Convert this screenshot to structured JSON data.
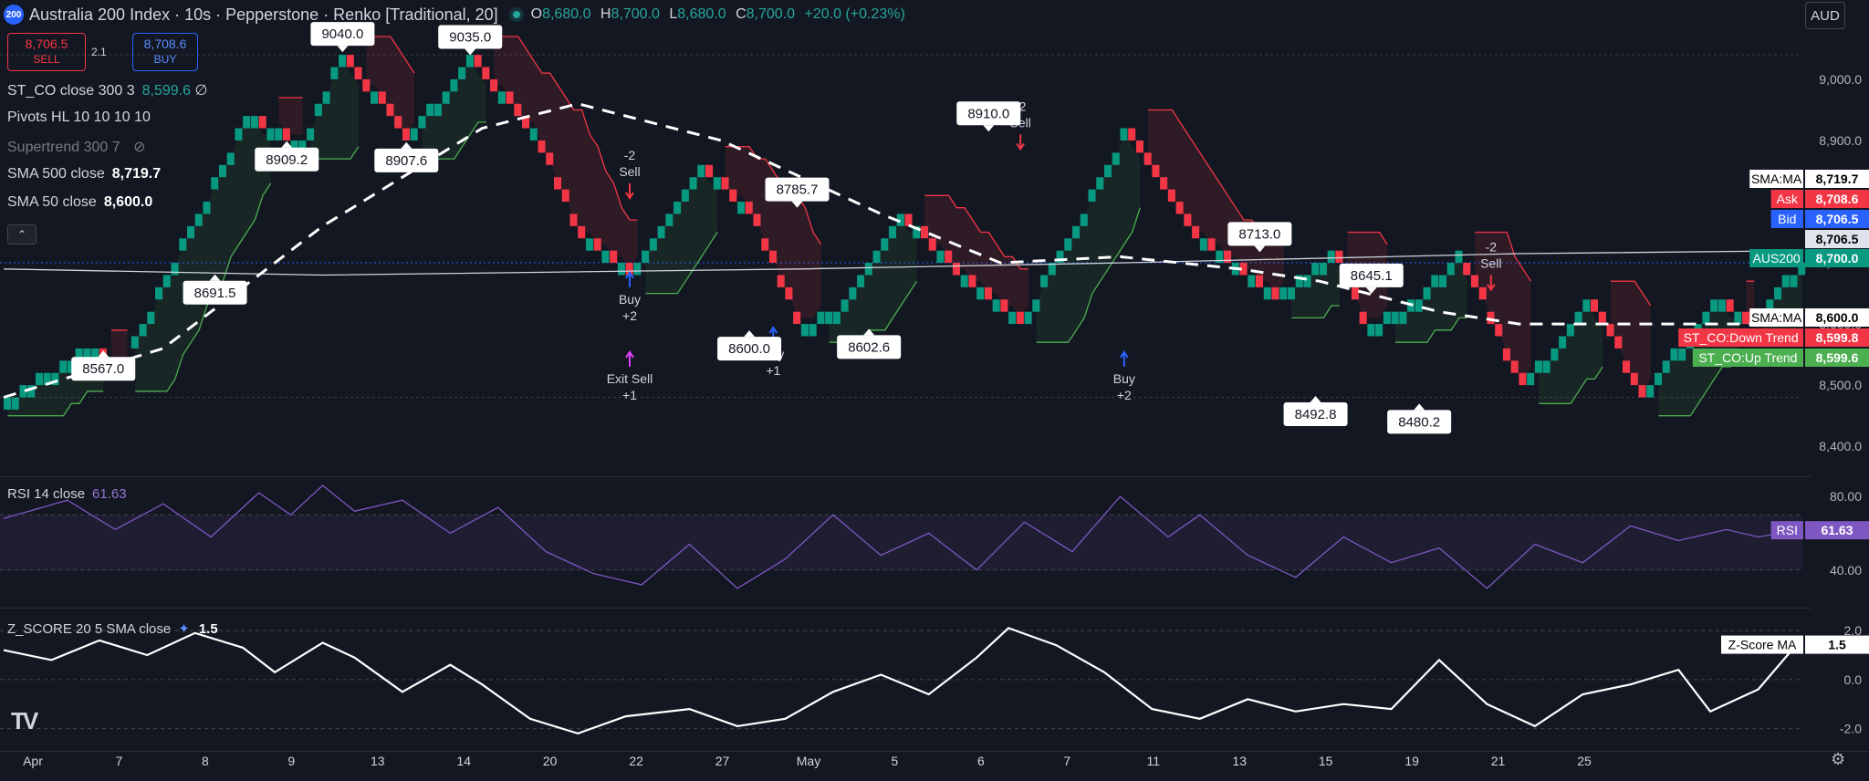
{
  "header": {
    "symbol_badge": "200",
    "title": "Australia 200 Index · 10s · Pepperstone · Renko [Traditional, 20]",
    "ohlc": {
      "o_label": "O",
      "o": "8,680.0",
      "h_label": "H",
      "h": "8,700.0",
      "l_label": "L",
      "l": "8,680.0",
      "c_label": "C",
      "c": "8,700.0",
      "change": "+20.0 (+0.23%)"
    },
    "currency": "AUD"
  },
  "trade": {
    "sell_price": "8,706.5",
    "sell_label": "SELL",
    "spread": "2.1",
    "buy_price": "8,708.6",
    "buy_label": "BUY"
  },
  "legend": {
    "st_co": "ST_CO close 300 3",
    "st_co_value": "8,599.6",
    "st_co_extra": "∅",
    "pivots": "Pivots HL 10 10 10 10",
    "supertrend": "Supertrend 300 7",
    "sma500": "SMA 500 close",
    "sma500_value": "8,719.7",
    "sma50": "SMA 50 close",
    "sma50_value": "8,600.0",
    "rsi": "RSI 14 close",
    "rsi_value": "61.63",
    "zscore": "Z_SCORE 20 5 SMA close",
    "zscore_value": "1.5"
  },
  "price_labels": [
    {
      "text": "SMA:MA",
      "value": "8,719.7",
      "bg": "#ffffff",
      "fg": "#000000",
      "price": 8719.7
    },
    {
      "text": "Ask",
      "value": "8,708.6",
      "bg": "#f23645",
      "fg": "#ffffff",
      "price": 8708.6
    },
    {
      "text": "Bid",
      "value": "8,706.5",
      "bg": "#2962ff",
      "fg": "#ffffff",
      "price": 8706.5
    },
    {
      "text": "",
      "value": "8,706.5",
      "bg": "#e0e3eb",
      "fg": "#000000",
      "price": 8690
    },
    {
      "text": "AUS200",
      "value": "8,700.0",
      "bg": "#089981",
      "fg": "#ffffff",
      "price": 8670
    },
    {
      "text": "SMA:MA",
      "value": "8,600.0",
      "bg": "#ffffff",
      "fg": "#000000",
      "price": 8600
    },
    {
      "text": "ST_CO:Down Trend",
      "value": "8,599.8",
      "bg": "#f23645",
      "fg": "#ffffff",
      "price": 8574
    },
    {
      "text": "ST_CO:Up Trend",
      "value": "8,599.6",
      "bg": "#4caf50",
      "fg": "#ffffff",
      "price": 8549
    }
  ],
  "rsi_label": {
    "text": "RSI",
    "value": "61.63"
  },
  "zscore_label": {
    "text": "Z-Score MA",
    "value": "1.5"
  },
  "chart_data": {
    "type": "renko",
    "ylim": [
      8360,
      9070
    ],
    "yticks": [
      8400,
      8500,
      8600,
      8700,
      8800,
      8900,
      9000
    ],
    "ytick_labels": [
      "8,400.0",
      "8,500.0",
      "8,600.0",
      "8,700.0",
      "8,800.0",
      "8,900.0",
      "9,000.0"
    ],
    "x_labels": [
      "Apr",
      "7",
      "8",
      "9",
      "13",
      "14",
      "20",
      "22",
      "27",
      "May",
      "5",
      "6",
      "7",
      "11",
      "13",
      "15",
      "19",
      "21",
      "25"
    ],
    "brick_size": 20,
    "path_points": [
      [
        0,
        8480
      ],
      [
        10,
        8560
      ],
      [
        14,
        8520
      ],
      [
        30,
        8940
      ],
      [
        37,
        8890
      ],
      [
        42,
        9040
      ],
      [
        50,
        8900
      ],
      [
        58,
        9035
      ],
      [
        66,
        8910
      ],
      [
        72,
        8740
      ],
      [
        78,
        8680
      ],
      [
        87,
        8860
      ],
      [
        93,
        8780
      ],
      [
        99,
        8600
      ],
      [
        104,
        8620
      ],
      [
        112,
        8780
      ],
      [
        118,
        8700
      ],
      [
        127,
        8602.6
      ],
      [
        134,
        8760
      ],
      [
        140,
        8910
      ],
      [
        148,
        8760
      ],
      [
        153,
        8700
      ],
      [
        159,
        8640
      ],
      [
        166,
        8720
      ],
      [
        170,
        8600
      ],
      [
        175,
        8620
      ],
      [
        182,
        8713
      ],
      [
        190,
        8492.8
      ],
      [
        198,
        8645
      ],
      [
        205,
        8480.2
      ],
      [
        214,
        8640
      ],
      [
        218,
        8600
      ],
      [
        225,
        8700
      ]
    ],
    "pivots": [
      {
        "i": 12,
        "price": 8567.0,
        "label": "8567.0",
        "pos": "below"
      },
      {
        "i": 26,
        "price": 8691.5,
        "label": "8691.5",
        "pos": "below"
      },
      {
        "i": 35,
        "price": 8909.2,
        "label": "8909.2",
        "pos": "below"
      },
      {
        "i": 42,
        "price": 9040.0,
        "label": "9040.0",
        "pos": "above"
      },
      {
        "i": 50,
        "price": 8907.6,
        "label": "8907.6",
        "pos": "below"
      },
      {
        "i": 58,
        "price": 9035.0,
        "label": "9035.0",
        "pos": "above"
      },
      {
        "i": 93,
        "price": 8600.0,
        "label": "8600.0",
        "pos": "below"
      },
      {
        "i": 99,
        "price": 8785.7,
        "label": "8785.7",
        "pos": "above"
      },
      {
        "i": 108,
        "price": 8602.6,
        "label": "8602.6",
        "pos": "below"
      },
      {
        "i": 123,
        "price": 8910.0,
        "label": "8910.0",
        "pos": "above"
      },
      {
        "i": 157,
        "price": 8713.0,
        "label": "8713.0",
        "pos": "above"
      },
      {
        "i": 164,
        "price": 8492.8,
        "label": "8492.8",
        "pos": "below"
      },
      {
        "i": 171,
        "price": 8645.1,
        "label": "8645.1",
        "pos": "above"
      },
      {
        "i": 177,
        "price": 8480.2,
        "label": "8480.2",
        "pos": "below"
      }
    ],
    "signals": [
      {
        "i": 78,
        "price": 8800,
        "text": "-2",
        "text2": "Sell",
        "type": "sell"
      },
      {
        "i": 78,
        "price": 8690,
        "text": "Buy",
        "text2": "+2",
        "type": "buy"
      },
      {
        "i": 78,
        "price": 8560,
        "text": "Exit Sell",
        "text2": "+1",
        "type": "exit"
      },
      {
        "i": 96,
        "price": 8600,
        "text": "Buy",
        "text2": "+1",
        "type": "buy"
      },
      {
        "i": 127,
        "price": 8880,
        "text": "-2",
        "text2": "Sell",
        "type": "sell"
      },
      {
        "i": 140,
        "price": 8560,
        "text": "Buy",
        "text2": "+2",
        "type": "buy"
      },
      {
        "i": 186,
        "price": 8650,
        "text": "-2",
        "text2": "Sell",
        "type": "sell"
      }
    ],
    "sma500": [
      [
        0,
        8690
      ],
      [
        40,
        8680
      ],
      [
        100,
        8690
      ],
      [
        140,
        8700
      ],
      [
        190,
        8715
      ],
      [
        225,
        8719.7
      ]
    ],
    "sma50": [
      [
        0,
        8480
      ],
      [
        20,
        8560
      ],
      [
        40,
        8760
      ],
      [
        60,
        8920
      ],
      [
        72,
        8960
      ],
      [
        90,
        8900
      ],
      [
        110,
        8780
      ],
      [
        125,
        8700
      ],
      [
        140,
        8710
      ],
      [
        155,
        8690
      ],
      [
        165,
        8670
      ],
      [
        180,
        8620
      ],
      [
        190,
        8600
      ],
      [
        225,
        8600
      ]
    ],
    "rsi": {
      "ylim": [
        25,
        88
      ],
      "yticks": [
        40,
        80
      ],
      "ytick_labels": [
        "40.00",
        "80.00"
      ],
      "band": [
        40,
        70
      ],
      "values": [
        [
          0,
          68
        ],
        [
          8,
          78
        ],
        [
          14,
          62
        ],
        [
          20,
          76
        ],
        [
          26,
          58
        ],
        [
          32,
          82
        ],
        [
          36,
          70
        ],
        [
          40,
          86
        ],
        [
          44,
          72
        ],
        [
          50,
          78
        ],
        [
          56,
          60
        ],
        [
          62,
          74
        ],
        [
          68,
          50
        ],
        [
          74,
          38
        ],
        [
          80,
          32
        ],
        [
          86,
          54
        ],
        [
          92,
          30
        ],
        [
          98,
          46
        ],
        [
          104,
          70
        ],
        [
          110,
          48
        ],
        [
          116,
          60
        ],
        [
          122,
          40
        ],
        [
          128,
          66
        ],
        [
          134,
          50
        ],
        [
          140,
          80
        ],
        [
          146,
          58
        ],
        [
          150,
          70
        ],
        [
          156,
          48
        ],
        [
          162,
          36
        ],
        [
          168,
          58
        ],
        [
          174,
          44
        ],
        [
          180,
          52
        ],
        [
          186,
          30
        ],
        [
          192,
          54
        ],
        [
          198,
          44
        ],
        [
          204,
          64
        ],
        [
          210,
          56
        ],
        [
          216,
          62
        ],
        [
          220,
          58
        ],
        [
          225,
          61.63
        ]
      ]
    },
    "zscore": {
      "ylim": [
        -2.5,
        2.6
      ],
      "yticks": [
        -2,
        0,
        2
      ],
      "ytick_labels": [
        "-2.0",
        "0.0",
        "2.0"
      ],
      "values": [
        [
          0,
          1.2
        ],
        [
          6,
          0.8
        ],
        [
          12,
          1.6
        ],
        [
          18,
          1.0
        ],
        [
          24,
          1.9
        ],
        [
          30,
          1.3
        ],
        [
          34,
          0.3
        ],
        [
          40,
          1.5
        ],
        [
          44,
          0.9
        ],
        [
          50,
          -0.5
        ],
        [
          56,
          0.6
        ],
        [
          60,
          -0.2
        ],
        [
          66,
          -1.6
        ],
        [
          72,
          -2.2
        ],
        [
          78,
          -1.5
        ],
        [
          86,
          -1.2
        ],
        [
          92,
          -1.9
        ],
        [
          98,
          -1.6
        ],
        [
          104,
          -0.5
        ],
        [
          110,
          0.2
        ],
        [
          116,
          -0.6
        ],
        [
          122,
          0.9
        ],
        [
          126,
          2.1
        ],
        [
          132,
          1.4
        ],
        [
          138,
          0.3
        ],
        [
          144,
          -1.2
        ],
        [
          150,
          -1.6
        ],
        [
          156,
          -0.8
        ],
        [
          162,
          -1.3
        ],
        [
          168,
          -1.0
        ],
        [
          174,
          -1.2
        ],
        [
          180,
          0.8
        ],
        [
          186,
          -1.0
        ],
        [
          192,
          -1.9
        ],
        [
          198,
          -0.6
        ],
        [
          204,
          -0.2
        ],
        [
          210,
          0.4
        ],
        [
          214,
          -1.3
        ],
        [
          220,
          -0.4
        ],
        [
          225,
          1.5
        ]
      ]
    }
  }
}
